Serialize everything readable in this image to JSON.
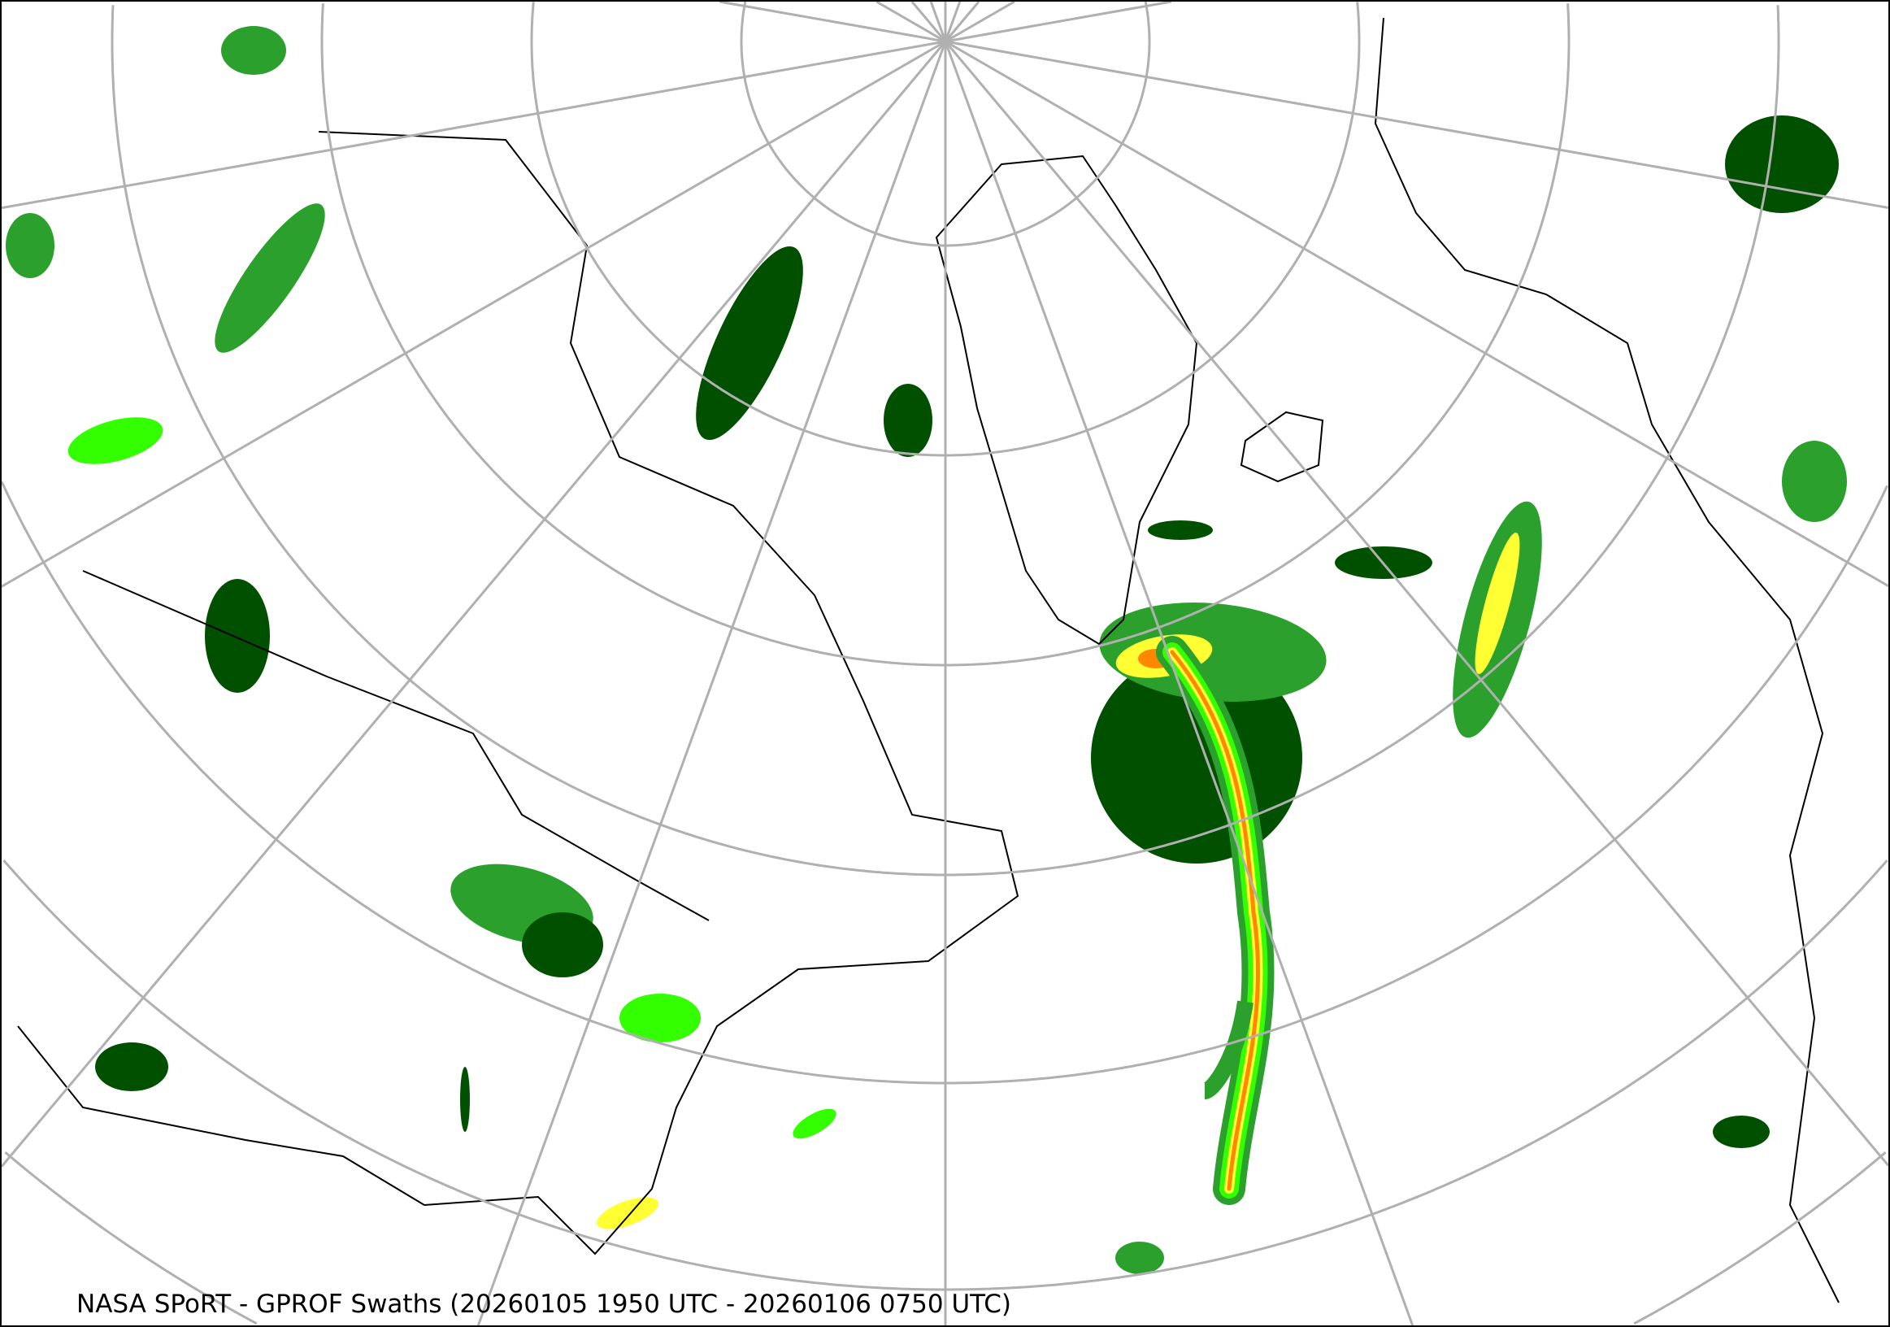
{
  "map": {
    "title": "NASA SPoRT - GPROF Swaths (20260105 1950 UTC - 20260106 0750 UTC)",
    "projection": "north-polar-stereographic",
    "graticule_color": "#b0b0b0",
    "coastline_color": "#000000",
    "precip_colors": {
      "light": "#005000",
      "moderate": "#2ca02c",
      "bright": "#33ff00",
      "heavy": "#ffff33",
      "intense": "#ff8800",
      "extreme": "#ff0000"
    }
  }
}
